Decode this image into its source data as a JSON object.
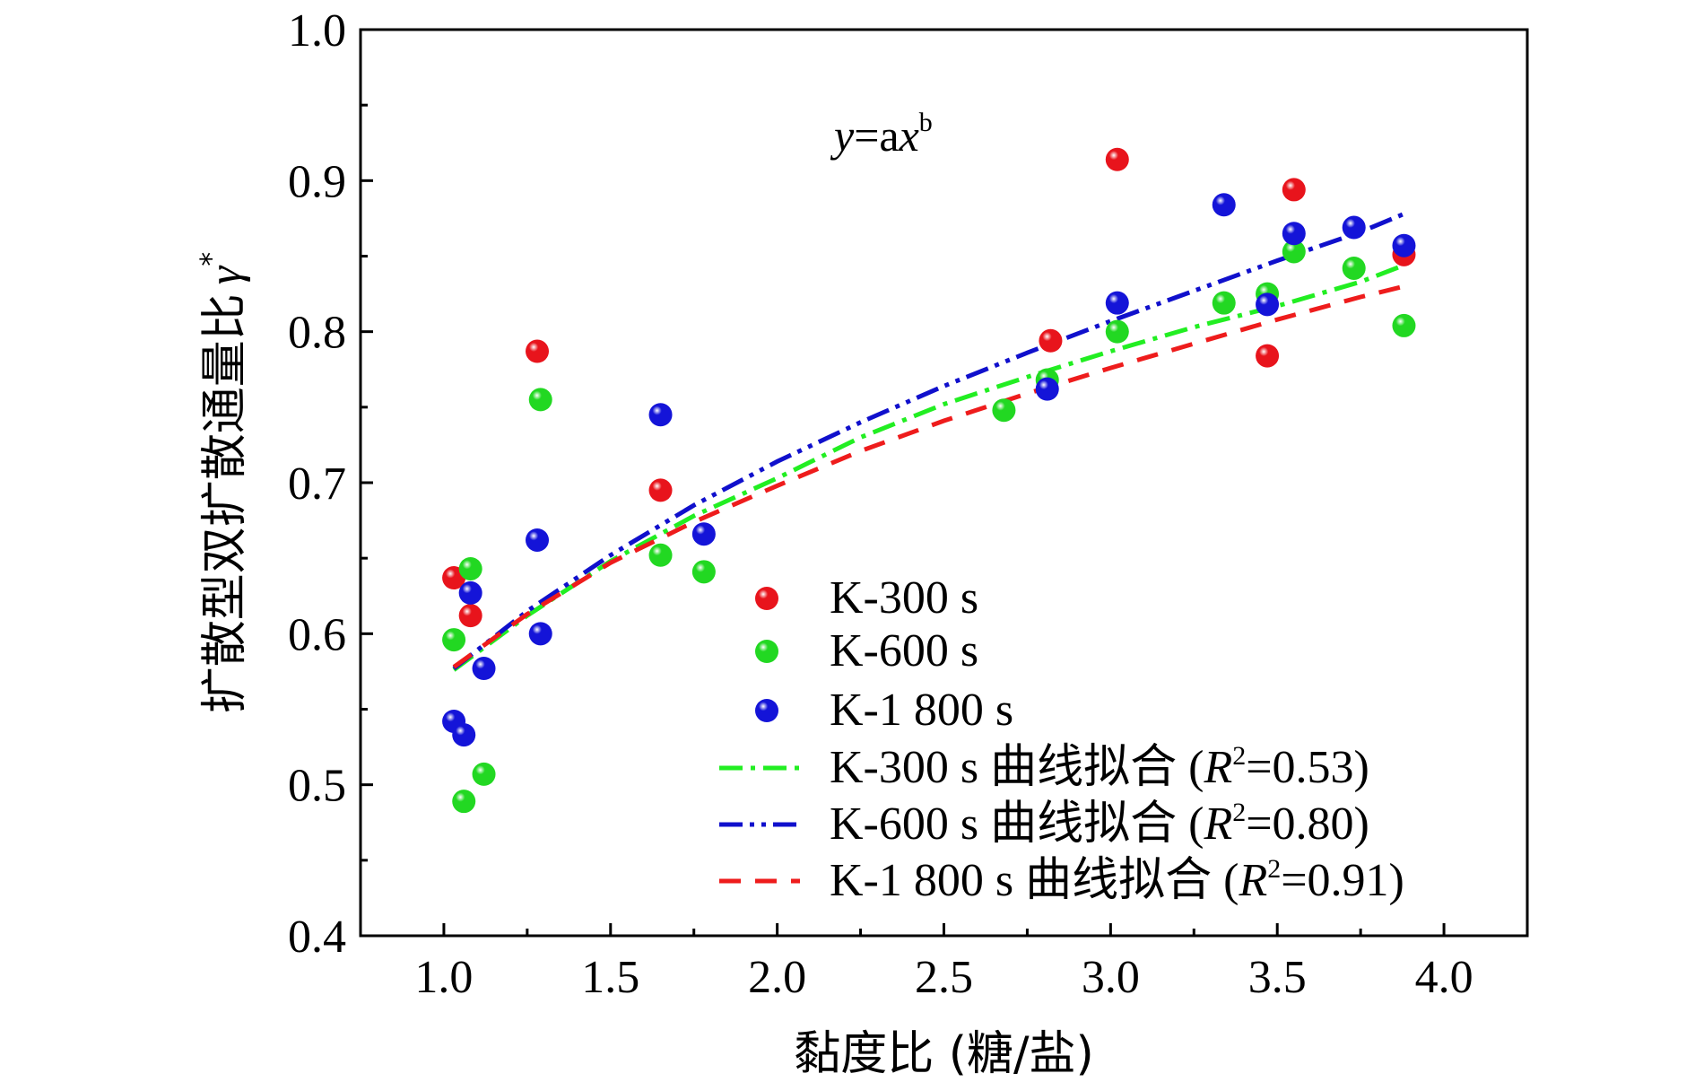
{
  "chart_data": {
    "type": "scatter",
    "xlabel": "黏度比 (糖/盐)",
    "ylabel": "扩散型双扩散通量比 γ*",
    "ylabel_main": "扩散型双扩散通量比",
    "ylabel_symbol": "γ",
    "ylabel_sup": "*",
    "xlim": [
      0.75,
      4.25
    ],
    "ylim": [
      0.4,
      1.0
    ],
    "x_ticks": [
      "1.0",
      "1.5",
      "2.0",
      "2.5",
      "3.0",
      "3.5",
      "4.0"
    ],
    "y_ticks": [
      "0.4",
      "0.5",
      "0.6",
      "0.7",
      "0.8",
      "0.9",
      "1.0"
    ],
    "x_tick_values": [
      1.0,
      1.5,
      2.0,
      2.5,
      3.0,
      3.5,
      4.0
    ],
    "y_tick_values": [
      0.4,
      0.5,
      0.6,
      0.7,
      0.8,
      0.9,
      1.0
    ],
    "grid": false,
    "legend_position": "bottom-right",
    "annotation": {
      "y": "y",
      "eq": "=a",
      "x": "x",
      "sup": "b"
    },
    "series": [
      {
        "name": "K-300 s",
        "kind": "points",
        "color": "#e8141c",
        "points": [
          [
            1.03,
            0.637
          ],
          [
            1.08,
            0.612
          ],
          [
            1.28,
            0.787
          ],
          [
            1.65,
            0.695
          ],
          [
            2.82,
            0.794
          ],
          [
            3.02,
            0.914
          ],
          [
            3.47,
            0.784
          ],
          [
            3.55,
            0.894
          ],
          [
            3.88,
            0.851
          ]
        ]
      },
      {
        "name": "K-600 s",
        "kind": "points",
        "color": "#22d822",
        "points": [
          [
            1.03,
            0.596
          ],
          [
            1.06,
            0.489
          ],
          [
            1.08,
            0.643
          ],
          [
            1.12,
            0.507
          ],
          [
            1.29,
            0.755
          ],
          [
            1.65,
            0.652
          ],
          [
            1.78,
            0.641
          ],
          [
            2.68,
            0.748
          ],
          [
            2.81,
            0.768
          ],
          [
            3.02,
            0.8
          ],
          [
            3.34,
            0.819
          ],
          [
            3.47,
            0.825
          ],
          [
            3.55,
            0.853
          ],
          [
            3.73,
            0.842
          ],
          [
            3.88,
            0.804
          ]
        ]
      },
      {
        "name": "K-1 800 s",
        "kind": "points",
        "color": "#1414d8",
        "points": [
          [
            1.03,
            0.542
          ],
          [
            1.06,
            0.533
          ],
          [
            1.08,
            0.627
          ],
          [
            1.12,
            0.577
          ],
          [
            1.28,
            0.662
          ],
          [
            1.29,
            0.6
          ],
          [
            1.65,
            0.745
          ],
          [
            1.78,
            0.666
          ],
          [
            2.81,
            0.762
          ],
          [
            3.02,
            0.819
          ],
          [
            3.34,
            0.884
          ],
          [
            3.47,
            0.818
          ],
          [
            3.55,
            0.865
          ],
          [
            3.73,
            0.869
          ],
          [
            3.88,
            0.857
          ]
        ]
      },
      {
        "name": "K-300 s 曲线拟合 (R²=0.53)",
        "legend_prefix": "K-300 s 曲线拟合 (",
        "legend_r": "R",
        "legend_sup": "2",
        "legend_suffix": "=0.53)",
        "kind": "line",
        "color": "#22ee22",
        "dash": "26 9 5 9",
        "x": [
          1.03,
          1.25,
          1.5,
          1.75,
          2.0,
          2.25,
          2.5,
          2.75,
          3.0,
          3.25,
          3.5,
          3.75,
          3.88
        ],
        "y": [
          0.576,
          0.612,
          0.648,
          0.678,
          0.703,
          0.73,
          0.752,
          0.77,
          0.787,
          0.803,
          0.817,
          0.833,
          0.844
        ]
      },
      {
        "name": "K-600 s 曲线拟合 (R²=0.80)",
        "legend_prefix": "K-600 s 曲线拟合 (",
        "legend_r": "R",
        "legend_sup": "2",
        "legend_suffix": "=0.80)",
        "kind": "line",
        "color": "#1010cc",
        "dash": "26 8 5 8 5 8",
        "x": [
          1.03,
          1.25,
          1.5,
          1.75,
          2.0,
          2.25,
          2.5,
          2.75,
          3.0,
          3.25,
          3.5,
          3.75,
          3.88
        ],
        "y": [
          0.577,
          0.615,
          0.652,
          0.685,
          0.714,
          0.74,
          0.764,
          0.786,
          0.807,
          0.827,
          0.847,
          0.866,
          0.878
        ]
      },
      {
        "name": "K-1 800 s 曲线拟合 (R²=0.91)",
        "legend_prefix": "K-1 800 s 曲线拟合 (",
        "legend_r": "R",
        "legend_sup": "2",
        "legend_suffix": "=0.91)",
        "kind": "line",
        "color": "#ee1c1c",
        "dash": "24 16",
        "x": [
          1.03,
          1.25,
          1.5,
          1.75,
          2.0,
          2.25,
          2.5,
          2.75,
          3.0,
          3.25,
          3.5,
          3.75,
          3.88
        ],
        "y": [
          0.578,
          0.613,
          0.647,
          0.674,
          0.698,
          0.721,
          0.741,
          0.759,
          0.776,
          0.792,
          0.808,
          0.823,
          0.83
        ]
      }
    ]
  }
}
